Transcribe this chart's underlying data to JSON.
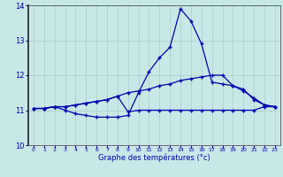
{
  "xlabel": "Graphe des températures (°c)",
  "background_color": "#c8e8e8",
  "grid_color": "#a8cccc",
  "line_color": "#0000aa",
  "hours": [
    0,
    1,
    2,
    3,
    4,
    5,
    6,
    7,
    8,
    9,
    10,
    11,
    12,
    13,
    14,
    15,
    16,
    17,
    18,
    19,
    20,
    21,
    22,
    23
  ],
  "curve_top": [
    11.05,
    11.05,
    11.1,
    11.1,
    11.15,
    11.2,
    11.25,
    11.3,
    11.4,
    11.5,
    11.55,
    11.6,
    11.7,
    11.75,
    11.85,
    11.9,
    11.95,
    12.0,
    12.0,
    11.7,
    11.55,
    11.35,
    11.15,
    11.1
  ],
  "curve_spike": [
    11.05,
    11.05,
    11.1,
    11.0,
    10.9,
    10.85,
    10.8,
    10.8,
    10.8,
    10.85,
    11.5,
    12.1,
    12.5,
    12.8,
    13.9,
    13.55,
    12.9,
    11.8,
    11.75,
    11.7,
    11.6,
    11.3,
    11.15,
    11.1
  ],
  "curve_flat": [
    11.05,
    11.05,
    11.1,
    11.1,
    11.15,
    11.2,
    11.25,
    11.3,
    11.4,
    10.95,
    11.0,
    11.0,
    11.0,
    11.0,
    11.0,
    11.0,
    11.0,
    11.0,
    11.0,
    11.0,
    11.0,
    11.0,
    11.1,
    11.1
  ],
  "xlim": [
    -0.5,
    23.5
  ],
  "ylim": [
    10.0,
    14.0
  ],
  "yticks": [
    10,
    11,
    12,
    13,
    14
  ],
  "xticks": [
    0,
    1,
    2,
    3,
    4,
    5,
    6,
    7,
    8,
    9,
    10,
    11,
    12,
    13,
    14,
    15,
    16,
    17,
    18,
    19,
    20,
    21,
    22,
    23
  ]
}
